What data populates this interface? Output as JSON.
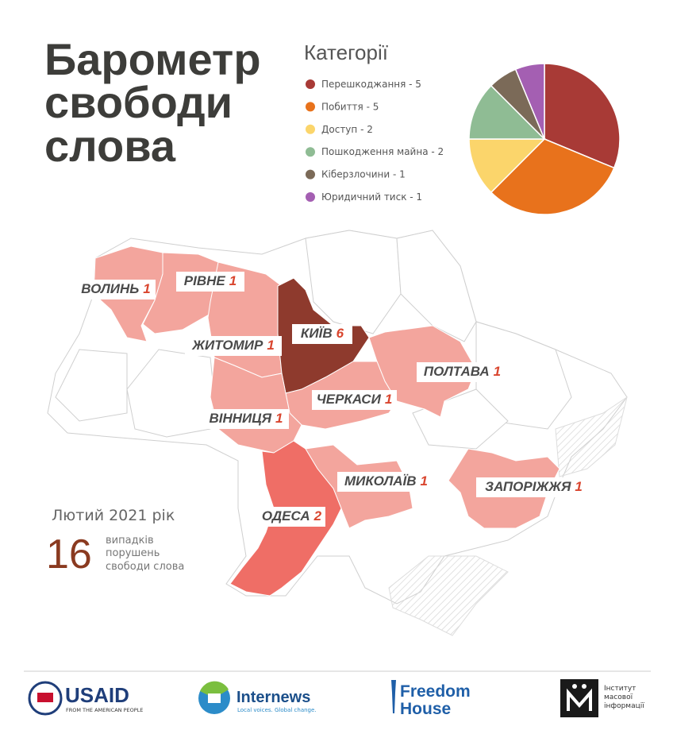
{
  "title_lines": [
    "Барометр",
    "свободи",
    "слова"
  ],
  "chart_data": {
    "type": "pie",
    "title": "Категорії",
    "categories": [
      "Перешкоджання - 5",
      "Побиття - 5",
      "Доступ - 2",
      "Пошкодження майна - 2",
      "Кіберзлочини - 1",
      "Юридичний тиск - 1"
    ],
    "values": [
      5,
      5,
      2,
      2,
      1,
      1
    ],
    "colors": [
      "#a83a36",
      "#e8721c",
      "#fbd56b",
      "#8fbc94",
      "#7b6a58",
      "#a45fb2"
    ]
  },
  "map": {
    "regions": [
      {
        "name": "ВОЛИНЬ",
        "count": 1,
        "color": "#f3a59d"
      },
      {
        "name": "РІВНЕ",
        "count": 1,
        "color": "#f3a59d"
      },
      {
        "name": "ЖИТОМИР",
        "count": 1,
        "color": "#f3a59d"
      },
      {
        "name": "КИЇВ",
        "count": 6,
        "color": "#8e3a2d"
      },
      {
        "name": "ПОЛТАВА",
        "count": 1,
        "color": "#f3a59d"
      },
      {
        "name": "ЧЕРКАСИ",
        "count": 1,
        "color": "#f3a59d"
      },
      {
        "name": "ВІННИЦЯ",
        "count": 1,
        "color": "#f3a59d"
      },
      {
        "name": "МИКОЛАЇВ",
        "count": 1,
        "color": "#f3a59d"
      },
      {
        "name": "ЗАПОРІЖЖЯ",
        "count": 1,
        "color": "#f3a59d"
      },
      {
        "name": "ОДЕСА",
        "count": 2,
        "color": "#ef6e66"
      }
    ]
  },
  "period": "Лютий 2021 рік",
  "total": 16,
  "total_caption": [
    "випадків",
    "порушень",
    "свободи слова"
  ],
  "logos": {
    "usaid": "USAID",
    "usaid_tagline": "FROM THE AMERICAN PEOPLE",
    "internews": "Internews",
    "internews_tagline": "Local voices. Global change.",
    "freedom_house": [
      "Freedom",
      "House"
    ],
    "imi": [
      "Інститут",
      "масової",
      "інформації"
    ]
  }
}
